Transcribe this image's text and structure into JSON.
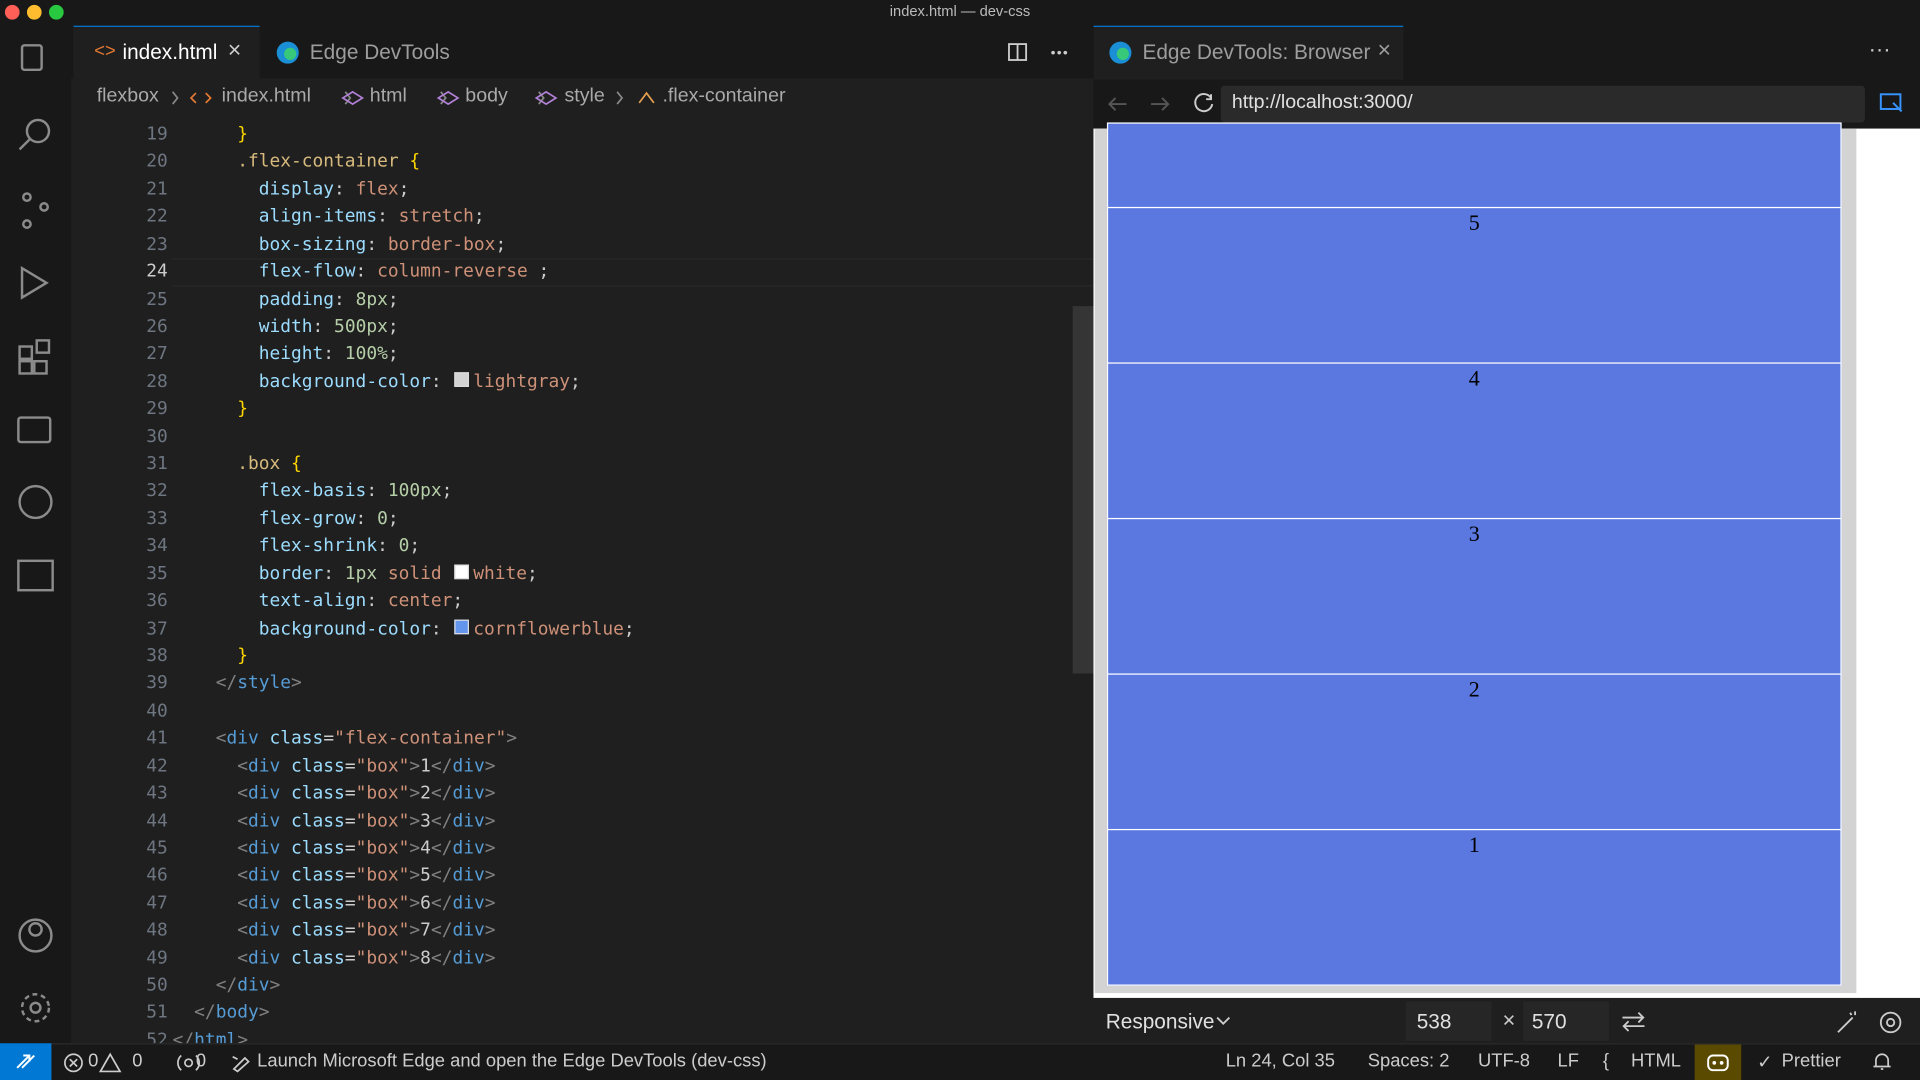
{
  "window_title": "index.html — dev-css",
  "editor": {
    "tabs": [
      "index.html",
      "Edge DevTools"
    ],
    "breadcrumb": [
      "flexbox",
      "index.html",
      "html",
      "body",
      "style",
      ".flex-container"
    ],
    "current_line": 24,
    "lines": [
      {
        "number": 19,
        "code": "      }"
      },
      {
        "number": 20,
        "code": "      .flex-container {"
      },
      {
        "number": 21,
        "code": "        display: flex;"
      },
      {
        "number": 22,
        "code": "        align-items: stretch;"
      },
      {
        "number": 23,
        "code": "        box-sizing: border-box;"
      },
      {
        "number": 24,
        "code": "        flex-flow: column-reverse ;"
      },
      {
        "number": 25,
        "code": "        padding: 8px;"
      },
      {
        "number": 26,
        "code": "        width: 500px;"
      },
      {
        "number": 27,
        "code": "        height: 100%;"
      },
      {
        "number": 28,
        "code": "        background-color: lightgray;"
      },
      {
        "number": 29,
        "code": "      }"
      },
      {
        "number": 30
      },
      {
        "number": 31,
        "code": "      .box {"
      },
      {
        "number": 32,
        "code": "        flex-basis: 100px;"
      },
      {
        "number": 33,
        "code": "        flex-grow: 0;"
      },
      {
        "number": 34,
        "code": "        flex-shrink: 0;"
      },
      {
        "number": 35,
        "code": "        border: 1px solid white;"
      },
      {
        "number": 36,
        "code": "        text-align: center;"
      },
      {
        "number": 37,
        "code": "        background-color: cornflowerblue;"
      },
      {
        "number": 38,
        "code": "      }"
      },
      {
        "number": 39,
        "code": "    </style>"
      },
      {
        "number": 40
      },
      {
        "number": 41,
        "code": "    <div class=\"flex-container\">"
      },
      {
        "number": 42,
        "code": "      <div class=\"box\">1</div>"
      },
      {
        "number": 43,
        "code": "      <div class=\"box\">2</div>"
      },
      {
        "number": 44,
        "code": "      <div class=\"box\">3</div>"
      },
      {
        "number": 45,
        "code": "      <div class=\"box\">4</div>"
      },
      {
        "number": 46,
        "code": "      <div class=\"box\">5</div>"
      },
      {
        "number": 47,
        "code": "      <div class=\"box\">6</div>"
      },
      {
        "number": 48,
        "code": "      <div class=\"box\">7</div>"
      },
      {
        "number": 49,
        "code": "      <div class=\"box\">8</div>"
      },
      {
        "number": 50,
        "code": "    </div>"
      },
      {
        "number": 51,
        "code": "  </body>"
      },
      {
        "number": 52,
        "code": "</html>"
      }
    ]
  },
  "browser": {
    "tab": "Edge DevTools: Browser",
    "url": "http://localhost:3000/",
    "boxes": [
      "5",
      "4",
      "3",
      "2",
      "1"
    ],
    "device": "Responsive",
    "width": "538",
    "height": "570"
  },
  "status_bar": {
    "errors": "0",
    "warnings": "0",
    "ports": "0",
    "task": "Launch Microsoft Edge and open the Edge DevTools (dev-css)",
    "position": "Ln 24, Col 35",
    "spaces": "Spaces: 2",
    "encoding": "UTF-8",
    "eol": "LF",
    "language": "HTML",
    "formatter": "Prettier"
  }
}
